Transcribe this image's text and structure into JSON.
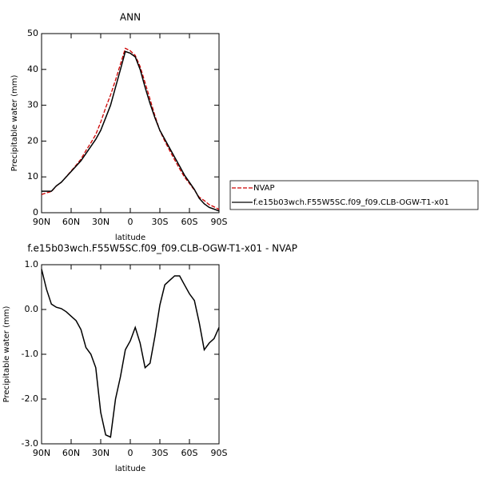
{
  "chart_data": [
    {
      "type": "line",
      "title": "ANN",
      "xlabel": "latitude",
      "ylabel": "Precipitable water (mm)",
      "x": [
        90,
        85,
        80,
        75,
        70,
        65,
        60,
        55,
        50,
        45,
        40,
        35,
        30,
        25,
        20,
        15,
        10,
        5,
        0,
        -5,
        -10,
        -15,
        -20,
        -25,
        -30,
        -35,
        -40,
        -45,
        -50,
        -55,
        -60,
        -65,
        -70,
        -75,
        -80,
        -85,
        -90
      ],
      "series": [
        {
          "name": "NVAP",
          "color": "#cc0000",
          "linestyle": "dashed",
          "values": [
            5.1,
            5.55,
            5.9,
            7.45,
            8.5,
            10.05,
            11.65,
            13.25,
            14.95,
            17.35,
            19.5,
            21.8,
            25.3,
            29.3,
            32.85,
            37,
            41.5,
            45.9,
            45.2,
            43.9,
            40.8,
            36.3,
            31.7,
            27.1,
            22.9,
            19.95,
            17.35,
            14.75,
            12.25,
            9.95,
            8.15,
            6.3,
            4.3,
            3.4,
            2.25,
            1.65,
            0.9
          ]
        },
        {
          "name": "f.e15b03wch.F55W5SC.f09_f09.CLB-OGW-T1-x01",
          "color": "#000000",
          "linestyle": "solid",
          "values": [
            6,
            6,
            6,
            7.5,
            8.5,
            10,
            11.5,
            13,
            14.5,
            16.5,
            18.5,
            20.5,
            23,
            26.5,
            30,
            35,
            40,
            45,
            44.5,
            43.5,
            40,
            35,
            30.5,
            26.5,
            23,
            20.5,
            18,
            15.5,
            13,
            10.5,
            8.5,
            6.5,
            4,
            2.5,
            1.5,
            1,
            0.5
          ]
        }
      ],
      "xlim": [
        90,
        -90
      ],
      "xticks": [
        {
          "value": 90,
          "label": "90N"
        },
        {
          "value": 60,
          "label": "60N"
        },
        {
          "value": 30,
          "label": "30N"
        },
        0,
        {
          "value": -30,
          "label": "30S"
        },
        {
          "value": -60,
          "label": "60S"
        },
        {
          "value": -90,
          "label": "90S"
        }
      ],
      "ylim": [
        0,
        50
      ],
      "yticks": [
        0,
        10,
        20,
        30,
        40,
        50
      ]
    },
    {
      "type": "line",
      "title": "f.e15b03wch.F55W5SC.f09_f09.CLB-OGW-T1-x01 - NVAP",
      "xlabel": "latitude",
      "ylabel": "Precipitable water (mm)",
      "x": [
        90,
        85,
        80,
        75,
        70,
        65,
        60,
        55,
        50,
        45,
        40,
        35,
        30,
        25,
        20,
        15,
        10,
        5,
        0,
        -5,
        -10,
        -15,
        -20,
        -25,
        -30,
        -35,
        -40,
        -45,
        -50,
        -55,
        -60,
        -65,
        -70,
        -75,
        -80,
        -85,
        -90
      ],
      "series": [
        {
          "color": "#000000",
          "linestyle": "solid",
          "values": [
            0.9,
            0.45,
            0.12,
            0.05,
            0.02,
            -0.05,
            -0.15,
            -0.25,
            -0.45,
            -0.85,
            -1.0,
            -1.3,
            -2.3,
            -2.8,
            -2.85,
            -2.0,
            -1.5,
            -0.9,
            -0.7,
            -0.4,
            -0.75,
            -1.3,
            -1.2,
            -0.6,
            0.1,
            0.55,
            0.65,
            0.75,
            0.75,
            0.55,
            0.35,
            0.2,
            -0.3,
            -0.9,
            -0.75,
            -0.65,
            -0.4
          ]
        }
      ],
      "xlim": [
        90,
        -90
      ],
      "xticks": [
        {
          "value": 90,
          "label": "90N"
        },
        {
          "value": 60,
          "label": "60N"
        },
        {
          "value": 30,
          "label": "30N"
        },
        0,
        {
          "value": -30,
          "label": "30S"
        },
        {
          "value": -60,
          "label": "60S"
        },
        {
          "value": -90,
          "label": "90S"
        }
      ],
      "ylim": [
        -3,
        1
      ],
      "yticks": [
        {
          "value": -3,
          "label": "-3.0"
        },
        {
          "value": -2,
          "label": "-2.0"
        },
        {
          "value": -1,
          "label": "-1.0"
        },
        {
          "value": 0,
          "label": "0.0"
        },
        {
          "value": 1,
          "label": "1.0"
        }
      ]
    }
  ]
}
